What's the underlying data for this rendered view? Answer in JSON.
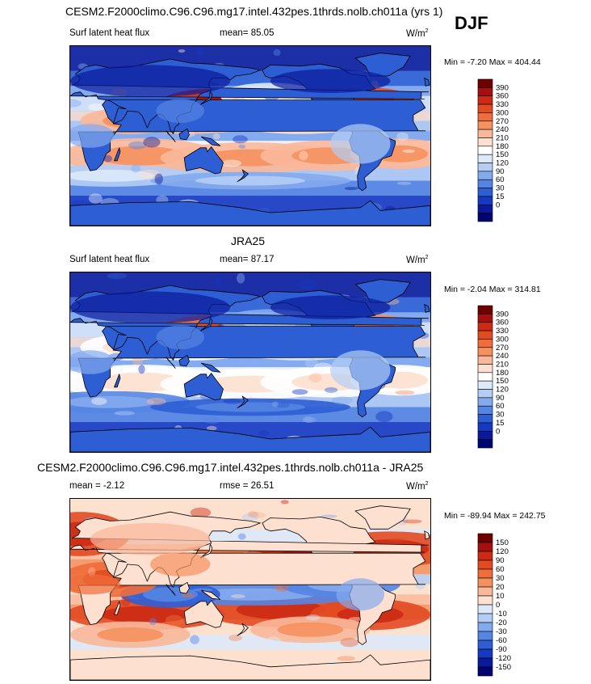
{
  "header": {
    "title": "CESM2.F2000climo.C96.C96.mg17.intel.432pes.1thrds.nolb.ch011a (yrs 1)",
    "season": "DJF"
  },
  "panels": [
    {
      "title": "",
      "variable": "Surf latent heat flux",
      "stat_label": "mean=",
      "stat_value": "85.05",
      "stat2_label": "",
      "stat2_value": "",
      "units": "W/m",
      "units_sup": "2",
      "minmax": "Min =  -7.20 Max = 404.44",
      "mode": "model"
    },
    {
      "title": "JRA25",
      "variable": "Surf latent heat flux",
      "stat_label": "mean=",
      "stat_value": "87.17",
      "stat2_label": "",
      "stat2_value": "",
      "units": "W/m",
      "units_sup": "2",
      "minmax": "Min =  -2.04 Max = 314.81",
      "mode": "obs"
    },
    {
      "title": "CESM2.F2000climo.C96.C96.mg17.intel.432pes.1thrds.nolb.ch011a - JRA25",
      "variable": "",
      "stat_label": "mean =",
      "stat_value": "-2.12",
      "stat2_label": "rmse =",
      "stat2_value": "26.51",
      "units": "W/m",
      "units_sup": "2",
      "minmax": "Min = -89.94 Max = 242.75",
      "mode": "diff"
    }
  ],
  "colorbars": {
    "abs": {
      "labels": [
        "390",
        "360",
        "330",
        "300",
        "270",
        "240",
        "210",
        "180",
        "150",
        "120",
        "90",
        "60",
        "30",
        "15",
        "0"
      ],
      "colors": [
        "#6e0000",
        "#a50f0f",
        "#cc2a14",
        "#e24a22",
        "#ef6d3a",
        "#f5915f",
        "#fab89a",
        "#fde0cf",
        "#ffffff",
        "#dce9fb",
        "#b4cdf5",
        "#84aaee",
        "#5585e2",
        "#2d5ed4",
        "#1738c0",
        "#0a1a9a",
        "#020570"
      ]
    },
    "diff": {
      "labels": [
        "150",
        "120",
        "90",
        "60",
        "30",
        "20",
        "10",
        "0",
        "-10",
        "-20",
        "-30",
        "-60",
        "-90",
        "-120",
        "-150"
      ],
      "colors": [
        "#6e0000",
        "#a50f0f",
        "#cc2a14",
        "#e24a22",
        "#ef6d3a",
        "#f5915f",
        "#fab89a",
        "#fde0cf",
        "#dce9fb",
        "#b4cdf5",
        "#84aaee",
        "#5585e2",
        "#2d5ed4",
        "#1738c0",
        "#0a1a9a",
        "#020570"
      ]
    }
  }
}
